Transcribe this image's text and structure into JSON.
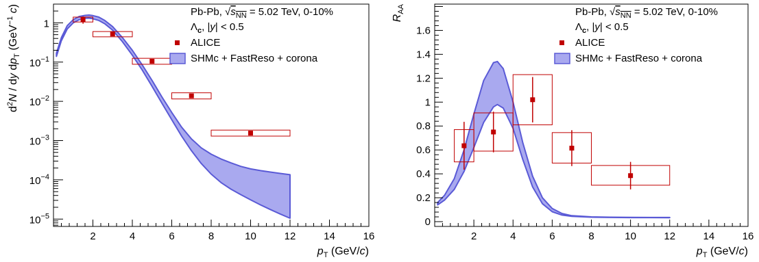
{
  "colors": {
    "data": "#c00000",
    "band_fill": "#a9a9ef",
    "band_line": "#5a5ad6",
    "axis": "#000000"
  },
  "chart_data": [
    {
      "type": "scatter",
      "log_y": true,
      "xlabel": {
        "var": "p",
        "sub": "T",
        "unit_pre": " (GeV/",
        "unit_var": "c",
        "unit_post": ")"
      },
      "ylabel": {
        "d": "d",
        "sup2": "2",
        "N": "N",
        "mid": " / d",
        "y": "y",
        "d2": " d",
        "p": "p",
        "pT": "T",
        "unit_pre": " (GeV",
        "unit_sup": "−1",
        "unit_c": " c",
        "unit_post": ")"
      },
      "xlim": [
        0,
        16
      ],
      "ylim": [
        6.5e-06,
        3
      ],
      "xticks": [
        2,
        4,
        6,
        8,
        10,
        12,
        14,
        16
      ],
      "yticks": [
        {
          "value": 1,
          "base": "1",
          "exp": ""
        },
        {
          "value": 0.1,
          "base": "10",
          "exp": "−1"
        },
        {
          "value": 0.01,
          "base": "10",
          "exp": "−2"
        },
        {
          "value": 0.001,
          "base": "10",
          "exp": "−3"
        },
        {
          "value": 0.0001,
          "base": "10",
          "exp": "−4"
        },
        {
          "value": 1e-05,
          "base": "10",
          "exp": "−5"
        }
      ],
      "legend": {
        "line1": {
          "pre": "Pb-Pb, ",
          "sqrt": "√",
          "s": "s",
          "sub": "NN",
          "post": " = 5.02 TeV, 0-10%"
        },
        "line2": {
          "lam": "Λ",
          "lam_sub": "c",
          "post": ", |",
          "y": "y",
          "post2": "| < 0.5"
        },
        "entries": [
          "ALICE",
          "SHMc + FastReso + corona"
        ]
      },
      "series": [
        {
          "name": "ALICE",
          "points": [
            {
              "x": 1.5,
              "y": 1.2,
              "xerr": 0.5,
              "yerr": 0.25,
              "sys_lo": 1.05,
              "sys_hi": 1.4
            },
            {
              "x": 3,
              "y": 0.52,
              "xerr": 1,
              "yerr": 0.05,
              "sys_lo": 0.44,
              "sys_hi": 0.6
            },
            {
              "x": 5,
              "y": 0.105,
              "xerr": 1,
              "yerr": 0.008,
              "sys_lo": 0.088,
              "sys_hi": 0.125
            },
            {
              "x": 7,
              "y": 0.0138,
              "xerr": 1,
              "yerr": 0.0015,
              "sys_lo": 0.0115,
              "sys_hi": 0.0165
            },
            {
              "x": 10,
              "y": 0.00155,
              "xerr": 2,
              "yerr": 0.0002,
              "sys_lo": 0.0013,
              "sys_hi": 0.00185
            }
          ]
        },
        {
          "name": "SHMc + FastReso + corona",
          "band": {
            "x": [
              0.15,
              0.4,
              0.7,
              1.0,
              1.3,
              1.6,
              1.8,
              2.0,
              2.3,
              2.6,
              3.0,
              3.5,
              4.0,
              4.5,
              5.0,
              5.5,
              6.0,
              6.5,
              7.0,
              7.5,
              8.0,
              8.5,
              9.0,
              9.5,
              10.0,
              10.5,
              11.0,
              11.5,
              12.0
            ],
            "upper": [
              0.17,
              0.42,
              0.85,
              1.2,
              1.45,
              1.55,
              1.58,
              1.53,
              1.4,
              1.15,
              0.8,
              0.42,
              0.2,
              0.085,
              0.034,
              0.013,
              0.0052,
              0.0022,
              0.0011,
              0.00065,
              0.00045,
              0.00034,
              0.00027,
              0.00022,
              0.00019,
              0.000172,
              0.000158,
              0.000146,
              0.000135
            ],
            "lower": [
              0.14,
              0.35,
              0.7,
              1.0,
              1.2,
              1.3,
              1.32,
              1.27,
              1.15,
              0.95,
              0.65,
              0.33,
              0.15,
              0.063,
              0.024,
              0.009,
              0.0034,
              0.0013,
              0.00055,
              0.00026,
              0.00014,
              8.5e-05,
              5.8e-05,
              4.2e-05,
              3.1e-05,
              2.3e-05,
              1.75e-05,
              1.35e-05,
              1.05e-05
            ]
          }
        }
      ]
    },
    {
      "type": "scatter",
      "xlabel": {
        "var": "p",
        "sub": "T",
        "unit_pre": " (GeV/",
        "unit_var": "c",
        "unit_post": ")"
      },
      "ylabel": {
        "R": "R",
        "sub": "AA"
      },
      "xlim": [
        0,
        16
      ],
      "ylim": [
        -0.04,
        1.82
      ],
      "xticks": [
        2,
        4,
        6,
        8,
        10,
        12,
        14,
        16
      ],
      "yticks": [
        0,
        0.2,
        0.4,
        0.6,
        0.8,
        1,
        1.2,
        1.4,
        1.6
      ],
      "legend": {
        "line1": {
          "pre": "Pb-Pb, ",
          "sqrt": "√",
          "s": "s",
          "sub": "NN",
          "post": " = 5.02 TeV, 0-10%"
        },
        "line2": {
          "lam": "Λ",
          "lam_sub": "c",
          "post": ", |",
          "y": "y",
          "post2": "| < 0.5"
        },
        "entries": [
          "ALICE",
          "SHMc + FastReso + corona"
        ]
      },
      "series": [
        {
          "name": "ALICE",
          "points": [
            {
              "x": 1.5,
              "y": 0.635,
              "xerr": 0.5,
              "yerr": 0.2,
              "sys_lo": 0.5,
              "sys_hi": 0.77
            },
            {
              "x": 3,
              "y": 0.75,
              "xerr": 1,
              "yerr": 0.17,
              "sys_lo": 0.59,
              "sys_hi": 0.91
            },
            {
              "x": 5,
              "y": 1.02,
              "xerr": 1,
              "yerr": 0.19,
              "sys_lo": 0.81,
              "sys_hi": 1.23
            },
            {
              "x": 7,
              "y": 0.615,
              "xerr": 1,
              "yerr": 0.15,
              "sys_lo": 0.49,
              "sys_hi": 0.745
            },
            {
              "x": 10,
              "y": 0.385,
              "xerr": 2,
              "yerr": 0.115,
              "sys_lo": 0.305,
              "sys_hi": 0.47
            }
          ]
        },
        {
          "name": "SHMc + FastReso + corona",
          "band": {
            "x": [
              0.15,
              0.5,
              1.0,
              1.5,
              2.0,
              2.5,
              3.0,
              3.2,
              3.5,
              4.0,
              4.5,
              5.0,
              5.5,
              6.0,
              6.5,
              7.0,
              8.0,
              9.0,
              10.0,
              11.0,
              12.0
            ],
            "upper": [
              0.16,
              0.22,
              0.36,
              0.6,
              0.9,
              1.18,
              1.33,
              1.34,
              1.28,
              1.0,
              0.66,
              0.38,
              0.2,
              0.11,
              0.068,
              0.05,
              0.04,
              0.037,
              0.036,
              0.035,
              0.035
            ],
            "lower": [
              0.14,
              0.18,
              0.27,
              0.42,
              0.62,
              0.83,
              0.96,
              0.98,
              0.95,
              0.78,
              0.52,
              0.29,
              0.15,
              0.083,
              0.055,
              0.044,
              0.037,
              0.035,
              0.034,
              0.034,
              0.033
            ]
          }
        }
      ]
    }
  ]
}
